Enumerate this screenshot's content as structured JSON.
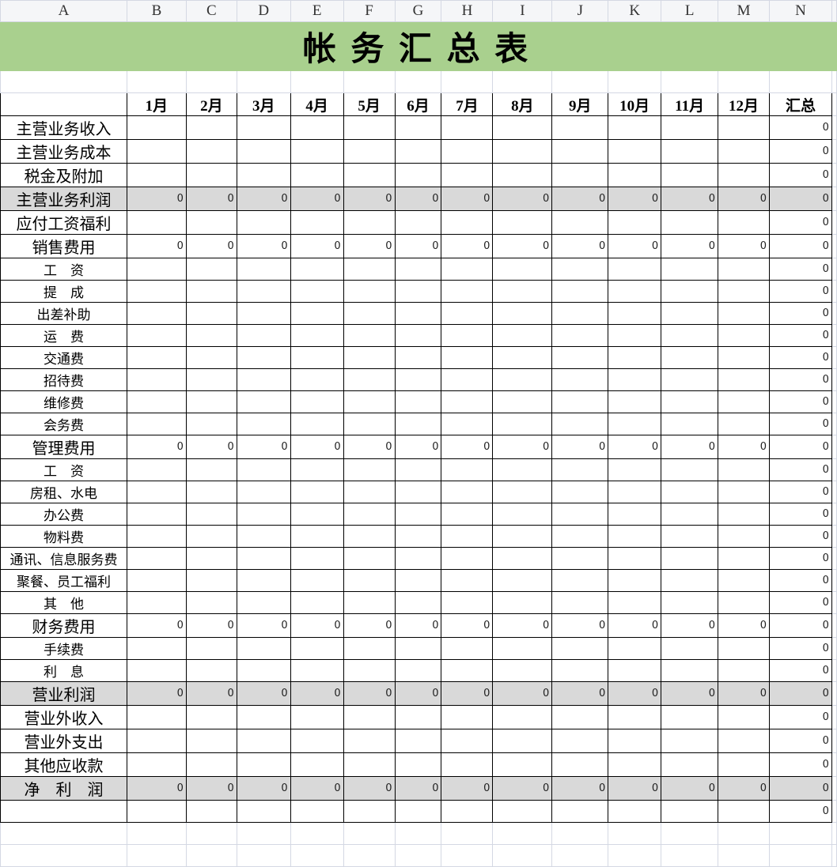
{
  "columns": [
    "A",
    "B",
    "C",
    "D",
    "E",
    "F",
    "G",
    "H",
    "I",
    "J",
    "K",
    "L",
    "M",
    "N"
  ],
  "title": "帐  务  汇  总  表",
  "header": [
    "",
    "1月",
    "2月",
    "3月",
    "4月",
    "5月",
    "6月",
    "7月",
    "8月",
    "9月",
    "10月",
    "11月",
    "12月",
    "汇总"
  ],
  "rows": [
    {
      "label": "主营业务收入",
      "size": "big",
      "shaded": false,
      "values": [
        "",
        "",
        "",
        "",
        "",
        "",
        "",
        "",
        "",
        "",
        "",
        "",
        "0"
      ]
    },
    {
      "label": "主营业务成本",
      "size": "big",
      "shaded": false,
      "values": [
        "",
        "",
        "",
        "",
        "",
        "",
        "",
        "",
        "",
        "",
        "",
        "",
        "0"
      ]
    },
    {
      "label": "税金及附加",
      "size": "big",
      "shaded": false,
      "values": [
        "",
        "",
        "",
        "",
        "",
        "",
        "",
        "",
        "",
        "",
        "",
        "",
        "0"
      ]
    },
    {
      "label": "主营业务利润",
      "size": "big",
      "shaded": true,
      "values": [
        "0",
        "0",
        "0",
        "0",
        "0",
        "0",
        "0",
        "0",
        "0",
        "0",
        "0",
        "0",
        "0"
      ]
    },
    {
      "label": "应付工资福利",
      "size": "big",
      "shaded": false,
      "values": [
        "",
        "",
        "",
        "",
        "",
        "",
        "",
        "",
        "",
        "",
        "",
        "",
        "0"
      ]
    },
    {
      "label": "销售费用",
      "size": "big",
      "shaded": false,
      "values": [
        "0",
        "0",
        "0",
        "0",
        "0",
        "0",
        "0",
        "0",
        "0",
        "0",
        "0",
        "0",
        "0"
      ]
    },
    {
      "label": "工　资",
      "size": "small",
      "shaded": false,
      "values": [
        "",
        "",
        "",
        "",
        "",
        "",
        "",
        "",
        "",
        "",
        "",
        "",
        "0"
      ]
    },
    {
      "label": "提　成",
      "size": "small",
      "shaded": false,
      "values": [
        "",
        "",
        "",
        "",
        "",
        "",
        "",
        "",
        "",
        "",
        "",
        "",
        "0"
      ]
    },
    {
      "label": "出差补助",
      "size": "small",
      "shaded": false,
      "values": [
        "",
        "",
        "",
        "",
        "",
        "",
        "",
        "",
        "",
        "",
        "",
        "",
        "0"
      ]
    },
    {
      "label": "运　费",
      "size": "small",
      "shaded": false,
      "values": [
        "",
        "",
        "",
        "",
        "",
        "",
        "",
        "",
        "",
        "",
        "",
        "",
        "0"
      ]
    },
    {
      "label": "交通费",
      "size": "small",
      "shaded": false,
      "values": [
        "",
        "",
        "",
        "",
        "",
        "",
        "",
        "",
        "",
        "",
        "",
        "",
        "0"
      ]
    },
    {
      "label": "招待费",
      "size": "small",
      "shaded": false,
      "values": [
        "",
        "",
        "",
        "",
        "",
        "",
        "",
        "",
        "",
        "",
        "",
        "",
        "0"
      ]
    },
    {
      "label": "维修费",
      "size": "small",
      "shaded": false,
      "values": [
        "",
        "",
        "",
        "",
        "",
        "",
        "",
        "",
        "",
        "",
        "",
        "",
        "0"
      ]
    },
    {
      "label": "会务费",
      "size": "small",
      "shaded": false,
      "values": [
        "",
        "",
        "",
        "",
        "",
        "",
        "",
        "",
        "",
        "",
        "",
        "",
        "0"
      ]
    },
    {
      "label": "管理费用",
      "size": "big",
      "shaded": false,
      "values": [
        "0",
        "0",
        "0",
        "0",
        "0",
        "0",
        "0",
        "0",
        "0",
        "0",
        "0",
        "0",
        "0"
      ]
    },
    {
      "label": "工　资",
      "size": "small",
      "shaded": false,
      "values": [
        "",
        "",
        "",
        "",
        "",
        "",
        "",
        "",
        "",
        "",
        "",
        "",
        "0"
      ]
    },
    {
      "label": "房租、水电",
      "size": "small",
      "shaded": false,
      "values": [
        "",
        "",
        "",
        "",
        "",
        "",
        "",
        "",
        "",
        "",
        "",
        "",
        "0"
      ]
    },
    {
      "label": "办公费",
      "size": "small",
      "shaded": false,
      "values": [
        "",
        "",
        "",
        "",
        "",
        "",
        "",
        "",
        "",
        "",
        "",
        "",
        "0"
      ]
    },
    {
      "label": "物料费",
      "size": "small",
      "shaded": false,
      "values": [
        "",
        "",
        "",
        "",
        "",
        "",
        "",
        "",
        "",
        "",
        "",
        "",
        "0"
      ]
    },
    {
      "label": "通讯、信息服务费",
      "size": "small",
      "shaded": false,
      "values": [
        "",
        "",
        "",
        "",
        "",
        "",
        "",
        "",
        "",
        "",
        "",
        "",
        "0"
      ]
    },
    {
      "label": "聚餐、员工福利",
      "size": "small",
      "shaded": false,
      "values": [
        "",
        "",
        "",
        "",
        "",
        "",
        "",
        "",
        "",
        "",
        "",
        "",
        "0"
      ]
    },
    {
      "label": "其　他",
      "size": "small",
      "shaded": false,
      "values": [
        "",
        "",
        "",
        "",
        "",
        "",
        "",
        "",
        "",
        "",
        "",
        "",
        "0"
      ]
    },
    {
      "label": "财务费用",
      "size": "big",
      "shaded": false,
      "values": [
        "0",
        "0",
        "0",
        "0",
        "0",
        "0",
        "0",
        "0",
        "0",
        "0",
        "0",
        "0",
        "0"
      ]
    },
    {
      "label": "手续费",
      "size": "small",
      "shaded": false,
      "values": [
        "",
        "",
        "",
        "",
        "",
        "",
        "",
        "",
        "",
        "",
        "",
        "",
        "0"
      ]
    },
    {
      "label": "利　息",
      "size": "small",
      "shaded": false,
      "values": [
        "",
        "",
        "",
        "",
        "",
        "",
        "",
        "",
        "",
        "",
        "",
        "",
        "0"
      ]
    },
    {
      "label": "营业利润",
      "size": "big",
      "shaded": true,
      "values": [
        "0",
        "0",
        "0",
        "0",
        "0",
        "0",
        "0",
        "0",
        "0",
        "0",
        "0",
        "0",
        "0"
      ]
    },
    {
      "label": "营业外收入",
      "size": "big",
      "shaded": false,
      "values": [
        "",
        "",
        "",
        "",
        "",
        "",
        "",
        "",
        "",
        "",
        "",
        "",
        "0"
      ]
    },
    {
      "label": "营业外支出",
      "size": "big",
      "shaded": false,
      "values": [
        "",
        "",
        "",
        "",
        "",
        "",
        "",
        "",
        "",
        "",
        "",
        "",
        "0"
      ]
    },
    {
      "label": "其他应收款",
      "size": "big",
      "shaded": false,
      "values": [
        "",
        "",
        "",
        "",
        "",
        "",
        "",
        "",
        "",
        "",
        "",
        "",
        "0"
      ]
    },
    {
      "label": "净　利　润",
      "size": "big",
      "shaded": true,
      "values": [
        "0",
        "0",
        "0",
        "0",
        "0",
        "0",
        "0",
        "0",
        "0",
        "0",
        "0",
        "0",
        "0"
      ]
    },
    {
      "label": "",
      "size": "big",
      "shaded": false,
      "values": [
        "",
        "",
        "",
        "",
        "",
        "",
        "",
        "",
        "",
        "",
        "",
        "",
        "0"
      ]
    }
  ],
  "colors": {
    "title_bg": "#a9d08e",
    "shade": "#d9d9d9",
    "grid": "#d4d8e3"
  }
}
